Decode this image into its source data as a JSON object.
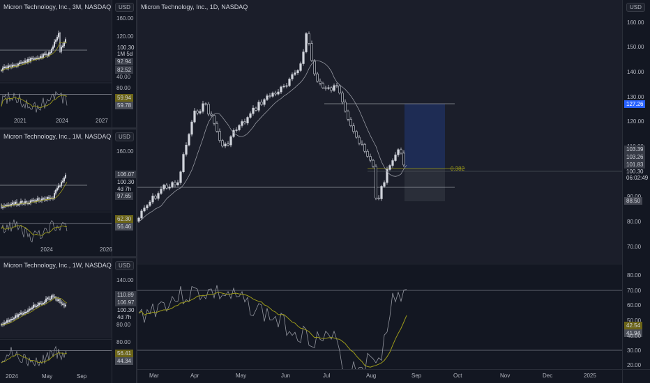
{
  "main": {
    "title": "Micron Technology, Inc., 1D, NASDAQ",
    "currency": "USD",
    "price_ticks": [
      "160.00",
      "150.00",
      "140.00",
      "130.00",
      "120.00",
      "110.00",
      "90.00",
      "80.00",
      "70.00"
    ],
    "price_badges": {
      "target": "127.26",
      "b1": "103.39",
      "b2": "103.26",
      "b3": "101.83",
      "last": "100.30",
      "countdown": "06:02:49",
      "stop": "88.50"
    },
    "fib_label": "0.382",
    "osc_ticks": [
      "80.00",
      "70.00",
      "60.00",
      "50.00",
      "40.00",
      "30.00",
      "20.00"
    ],
    "osc_badges": {
      "a": "42.54",
      "b": "41.94"
    },
    "x_labels": [
      "Mar",
      "Apr",
      "May",
      "Jun",
      "Jul",
      "Aug",
      "Sep",
      "Oct",
      "Nov",
      "Dec",
      "2025"
    ],
    "colors": {
      "bg": "#131722",
      "candle": "#d1d4dc",
      "ma": "#b8b8b8",
      "signal": "#9c9a1a",
      "target_zone": "#1f2f5c",
      "stop_zone": "#2a2e39",
      "accent": "#2962ff"
    }
  },
  "mini_3m": {
    "title": "Micron Technology, Inc., 3M, NASDAQ",
    "currency": "USD",
    "price_ticks": [
      "160.00",
      "120.00",
      "40.00"
    ],
    "badges": {
      "last": "100.30",
      "countdown": "1M 5d",
      "a": "92.94",
      "b": "82.52"
    },
    "osc_ticks": [
      "80.00"
    ],
    "osc_badges": {
      "a": "59.94",
      "b": "59.78"
    },
    "x_labels": [
      "2021",
      "2024",
      "2027"
    ]
  },
  "mini_1m": {
    "title": "Micron Technology, Inc., 1M, NASDAQ",
    "currency": "USD",
    "price_ticks": [
      "160.00"
    ],
    "badges": {
      "a": "106.07",
      "last": "100.30",
      "countdown": "4d 7h",
      "b": "97.65"
    },
    "osc_badges": {
      "a": "62.30",
      "b": "56.46"
    },
    "x_labels": [
      "2024",
      "2026"
    ]
  },
  "mini_1w": {
    "title": "Micron Technology, Inc., 1W, NASDAQ",
    "currency": "USD",
    "price_ticks": [
      "140.00",
      "80.00"
    ],
    "badges": {
      "a": "110.89",
      "b": "106.97",
      "last": "100.30",
      "countdown": "4d 7h"
    },
    "osc_ticks": [
      "80.00"
    ],
    "osc_badges": {
      "a": "56.41",
      "b": "44.34"
    },
    "x_labels": [
      "2024",
      "May",
      "Sep"
    ]
  }
}
